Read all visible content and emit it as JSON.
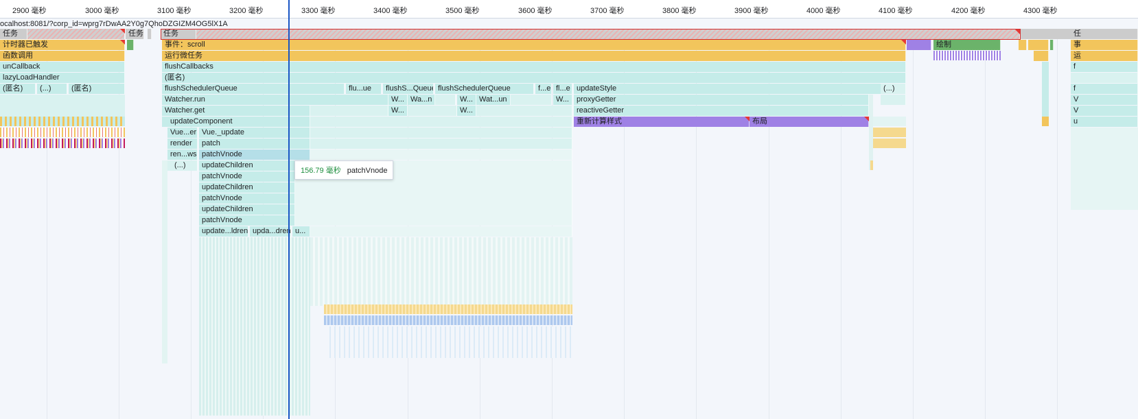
{
  "ruler": {
    "ticks": [
      "2900 毫秒",
      "3000 毫秒",
      "3100 毫秒",
      "3200 毫秒",
      "3300 毫秒",
      "3400 毫秒",
      "3500 毫秒",
      "3600 毫秒",
      "3700 毫秒",
      "3800 毫秒",
      "3900 毫秒",
      "4000 毫秒",
      "4100 毫秒",
      "4200 毫秒",
      "4300 毫秒"
    ]
  },
  "url_label": "ocalhost:8081/?corp_id=wprg7rDwAA2Y0g7QhoDZGIZM4OG5lX1A",
  "left_stack": {
    "task": "任务",
    "timer": "计时器已触发",
    "func": "函数调用",
    "callback": "unCallback",
    "lazy": "lazyLoadHandler",
    "anon1": "(匿名)",
    "dots": "(...)",
    "anon2": "(匿名)"
  },
  "mid_task": "任务",
  "main": {
    "task": "任务",
    "event": "事件：scroll",
    "microtasks": "运行微任务",
    "flushCallbacks": "flushCallbacks",
    "anon": "(匿名)",
    "flushSchedulerQueue": "flushSchedulerQueue",
    "watcherRun": "Watcher.run",
    "watcherGet": "Watcher.get",
    "updateComponent": "updateComponent",
    "vueEr": "Vue...er",
    "vueUpdate": "Vue._update",
    "render": "render",
    "patch": "patch",
    "renWs": "ren...ws",
    "patchVnode": "patchVnode",
    "dots": "(...)",
    "updateChildren": "updateChildren",
    "updateLdren": "update...ldren",
    "updaDren": "upda...dren",
    "u": "u...",
    "fluUe": "flu...ue",
    "flushSQueue": "flushS...Queue",
    "flushSchedulerQueue2": "flushSchedulerQueue",
    "fE": "f...e",
    "flE": "fl...e",
    "w1": "W...",
    "waN": "Wa...n",
    "w2": "W...",
    "watUn": "Wat...un",
    "w3": "W...",
    "w4": "W...",
    "w5": "W...",
    "updateStyle": "updateStyle",
    "proxyGetter": "proxyGetter",
    "reactiveGetter": "reactiveGetter",
    "recalcStyle": "重新计算样式",
    "layout": "布局",
    "rightDots": "(...)",
    "paint": "绘制"
  },
  "right_edge": {
    "task": "任",
    "e": "事",
    "run": "运",
    "f1": "f",
    "f2": "f",
    "v1": "V",
    "v2": "V",
    "u": "u"
  },
  "tooltip": {
    "duration": "156.79 毫秒",
    "name": "patchVnode"
  }
}
